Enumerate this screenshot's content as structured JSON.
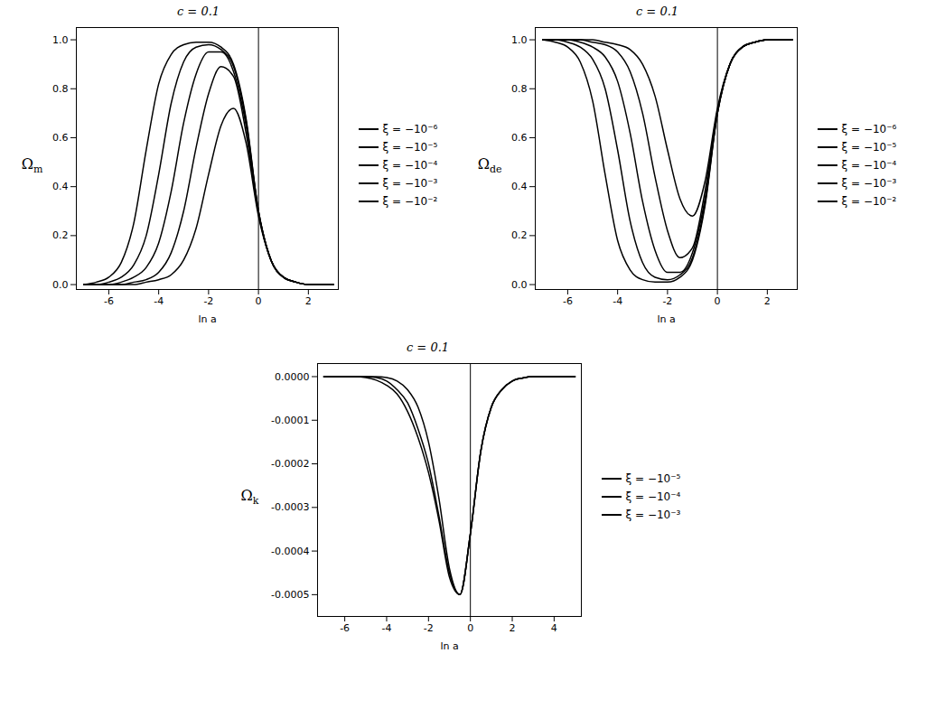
{
  "chart_data": [
    {
      "type": "line",
      "title": "c = 0.1",
      "xlabel": "ln a",
      "ylabel": "Ωm",
      "grid": false,
      "legend": "right",
      "vertical_line": 0,
      "xlim": [
        -7.3,
        3.2
      ],
      "xticks": [
        -6,
        -4,
        -2,
        0,
        2
      ],
      "ylim": [
        -0.02,
        1.05
      ],
      "yticks": [
        {
          "value": 0,
          "label": "0.0"
        },
        {
          "value": 0.2,
          "label": "0.2"
        },
        {
          "value": 0.4,
          "label": "0.4"
        },
        {
          "value": 0.6,
          "label": "0.6"
        },
        {
          "value": 0.8,
          "label": "0.8"
        },
        {
          "value": 1,
          "label": "1.0"
        }
      ],
      "x": [
        -7,
        -6.5,
        -6,
        -5.5,
        -5,
        -4.5,
        -4,
        -3.5,
        -3,
        -2.5,
        -2,
        -1.5,
        -1,
        -0.5,
        0,
        0.5,
        1,
        1.5,
        2,
        2.5,
        3
      ],
      "series": [
        {
          "name": "ξ = −10⁻⁶",
          "color": "#000000",
          "line_style": "solid",
          "values": [
            0,
            0.01,
            0.03,
            0.09,
            0.25,
            0.55,
            0.82,
            0.94,
            0.98,
            0.99,
            0.99,
            0.97,
            0.9,
            0.68,
            0.3,
            0.1,
            0.03,
            0.01,
            0,
            0,
            0
          ]
        },
        {
          "name": "ξ = −10⁻⁵",
          "color": "#000000",
          "line_style": "solid",
          "values": [
            0,
            0,
            0.01,
            0.03,
            0.08,
            0.2,
            0.45,
            0.74,
            0.91,
            0.97,
            0.98,
            0.96,
            0.89,
            0.67,
            0.3,
            0.1,
            0.03,
            0.01,
            0,
            0,
            0
          ]
        },
        {
          "name": "ξ = −10⁻⁴",
          "color": "#000000",
          "line_style": "solid",
          "values": [
            0,
            0,
            0,
            0.01,
            0.03,
            0.07,
            0.17,
            0.38,
            0.66,
            0.86,
            0.95,
            0.95,
            0.87,
            0.65,
            0.3,
            0.1,
            0.03,
            0.01,
            0,
            0,
            0
          ]
        },
        {
          "name": "ξ = −10⁻³",
          "color": "#000000",
          "line_style": "solid",
          "values": [
            0,
            0,
            0,
            0,
            0.01,
            0.02,
            0.05,
            0.13,
            0.3,
            0.56,
            0.78,
            0.89,
            0.85,
            0.62,
            0.29,
            0.1,
            0.03,
            0.01,
            0,
            0,
            0
          ]
        },
        {
          "name": "ξ = −10⁻²",
          "color": "#000000",
          "line_style": "solid",
          "values": [
            0,
            0,
            0,
            0,
            0,
            0.01,
            0.02,
            0.04,
            0.1,
            0.23,
            0.45,
            0.65,
            0.72,
            0.58,
            0.28,
            0.1,
            0.03,
            0.01,
            0,
            0,
            0
          ]
        }
      ]
    },
    {
      "type": "line",
      "title": "c = 0.1",
      "xlabel": "ln a",
      "ylabel": "Ωde",
      "grid": false,
      "legend": "right",
      "vertical_line": 0,
      "xlim": [
        -7.3,
        3.2
      ],
      "xticks": [
        -6,
        -4,
        -2,
        0,
        2
      ],
      "ylim": [
        -0.02,
        1.05
      ],
      "yticks": [
        {
          "value": 0,
          "label": "0.0"
        },
        {
          "value": 0.2,
          "label": "0.2"
        },
        {
          "value": 0.4,
          "label": "0.4"
        },
        {
          "value": 0.6,
          "label": "0.6"
        },
        {
          "value": 0.8,
          "label": "0.8"
        },
        {
          "value": 1,
          "label": "1.0"
        }
      ],
      "x": [
        -7,
        -6.5,
        -6,
        -5.5,
        -5,
        -4.5,
        -4,
        -3.5,
        -3,
        -2.5,
        -2,
        -1.5,
        -1,
        -0.5,
        0,
        0.5,
        1,
        1.5,
        2,
        2.5,
        3
      ],
      "series": [
        {
          "name": "ξ = −10⁻⁶",
          "color": "#000000",
          "line_style": "solid",
          "values": [
            1,
            0.99,
            0.97,
            0.91,
            0.75,
            0.45,
            0.18,
            0.06,
            0.02,
            0.01,
            0.01,
            0.03,
            0.1,
            0.32,
            0.7,
            0.9,
            0.97,
            0.99,
            1,
            1,
            1
          ]
        },
        {
          "name": "ξ = −10⁻⁵",
          "color": "#000000",
          "line_style": "solid",
          "values": [
            1,
            1,
            0.99,
            0.97,
            0.92,
            0.8,
            0.55,
            0.26,
            0.09,
            0.03,
            0.02,
            0.04,
            0.11,
            0.33,
            0.7,
            0.9,
            0.97,
            0.99,
            1,
            1,
            1
          ]
        },
        {
          "name": "ξ = −10⁻⁴",
          "color": "#000000",
          "line_style": "solid",
          "values": [
            1,
            1,
            1,
            0.99,
            0.97,
            0.93,
            0.83,
            0.62,
            0.34,
            0.14,
            0.05,
            0.05,
            0.13,
            0.35,
            0.7,
            0.9,
            0.97,
            0.99,
            1,
            1,
            1
          ]
        },
        {
          "name": "ξ = −10⁻³",
          "color": "#000000",
          "line_style": "solid",
          "values": [
            1,
            1,
            1,
            1,
            0.99,
            0.98,
            0.95,
            0.87,
            0.7,
            0.44,
            0.22,
            0.11,
            0.15,
            0.38,
            0.71,
            0.9,
            0.97,
            0.99,
            1,
            1,
            1
          ]
        },
        {
          "name": "ξ = −10⁻²",
          "color": "#000000",
          "line_style": "solid",
          "values": [
            1,
            1,
            1,
            1,
            1,
            0.99,
            0.98,
            0.96,
            0.9,
            0.77,
            0.55,
            0.35,
            0.28,
            0.42,
            0.72,
            0.9,
            0.97,
            0.99,
            1,
            1,
            1
          ]
        }
      ]
    },
    {
      "type": "line",
      "title": "c = 0.1",
      "xlabel": "ln a",
      "ylabel": "Ωk",
      "grid": false,
      "legend": "right",
      "vertical_line": 0,
      "xlim": [
        -7.3,
        5.3
      ],
      "xticks": [
        -6,
        -4,
        -2,
        0,
        2,
        4
      ],
      "ylim": [
        -0.00055,
        3e-05
      ],
      "yticks": [
        {
          "value": 0,
          "label": "0.0000"
        },
        {
          "value": -0.0001,
          "label": "-0.0001"
        },
        {
          "value": -0.0002,
          "label": "-0.0002"
        },
        {
          "value": -0.0003,
          "label": "-0.0003"
        },
        {
          "value": -0.0004,
          "label": "-0.0004"
        },
        {
          "value": -0.0005,
          "label": "-0.0005"
        }
      ],
      "x": [
        -7,
        -6.5,
        -6,
        -5.5,
        -5,
        -4.5,
        -4,
        -3.5,
        -3,
        -2.5,
        -2,
        -1.5,
        -1,
        -0.5,
        0,
        0.5,
        1,
        1.5,
        2,
        2.5,
        3,
        3.5,
        4,
        4.5,
        5
      ],
      "series": [
        {
          "name": "ξ = −10⁻⁵",
          "color": "#000000",
          "line_style": "solid",
          "values": [
            0,
            0,
            0,
            0,
            -2e-06,
            -8e-06,
            -2e-05,
            -4e-05,
            -8e-05,
            -0.00014,
            -0.00022,
            -0.00033,
            -0.00046,
            -0.0005,
            -0.00036,
            -0.00017,
            -7e-05,
            -3e-05,
            -1e-05,
            -3e-06,
            0,
            0,
            0,
            0,
            0
          ]
        },
        {
          "name": "ξ = −10⁻⁴",
          "color": "#000000",
          "line_style": "solid",
          "values": [
            0,
            0,
            0,
            0,
            0,
            -2e-06,
            -1e-05,
            -3e-05,
            -6e-05,
            -0.00012,
            -0.0002,
            -0.00032,
            -0.00045,
            -0.0005,
            -0.00036,
            -0.00017,
            -7e-05,
            -3e-05,
            -1e-05,
            -3e-06,
            0,
            0,
            0,
            0,
            0
          ]
        },
        {
          "name": "ξ = −10⁻³",
          "color": "#000000",
          "line_style": "solid",
          "values": [
            0,
            0,
            0,
            0,
            0,
            0,
            -2e-06,
            -1e-05,
            -3e-05,
            -7e-05,
            -0.00015,
            -0.00028,
            -0.00044,
            -0.0005,
            -0.00036,
            -0.00017,
            -7e-05,
            -3e-05,
            -1e-05,
            -3e-06,
            0,
            0,
            0,
            0,
            0
          ]
        }
      ]
    }
  ]
}
